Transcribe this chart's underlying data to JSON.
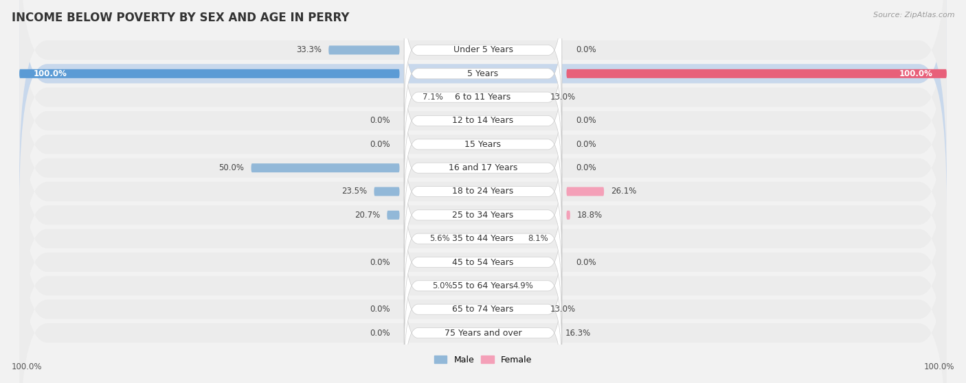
{
  "title": "INCOME BELOW POVERTY BY SEX AND AGE IN PERRY",
  "source": "Source: ZipAtlas.com",
  "categories": [
    "Under 5 Years",
    "5 Years",
    "6 to 11 Years",
    "12 to 14 Years",
    "15 Years",
    "16 and 17 Years",
    "18 to 24 Years",
    "25 to 34 Years",
    "35 to 44 Years",
    "45 to 54 Years",
    "55 to 64 Years",
    "65 to 74 Years",
    "75 Years and over"
  ],
  "male": [
    33.3,
    100.0,
    7.1,
    0.0,
    0.0,
    50.0,
    23.5,
    20.7,
    5.6,
    0.0,
    5.0,
    0.0,
    0.0
  ],
  "female": [
    0.0,
    100.0,
    13.0,
    0.0,
    0.0,
    0.0,
    26.1,
    18.8,
    8.1,
    0.0,
    4.9,
    13.0,
    16.3
  ],
  "male_color": "#92b8d8",
  "female_color": "#f4a0b8",
  "male_highlight_color": "#5b9bd5",
  "female_highlight_color": "#e8607a",
  "max_val": 100.0,
  "highlight_row_idx": 1,
  "title_fontsize": 12,
  "label_fontsize": 9,
  "value_fontsize": 8.5,
  "tick_fontsize": 8.5,
  "row_bg_normal": "#ececec",
  "row_bg_highlight": "#c8d8ec",
  "bar_bg_color": "#e0e0e0"
}
